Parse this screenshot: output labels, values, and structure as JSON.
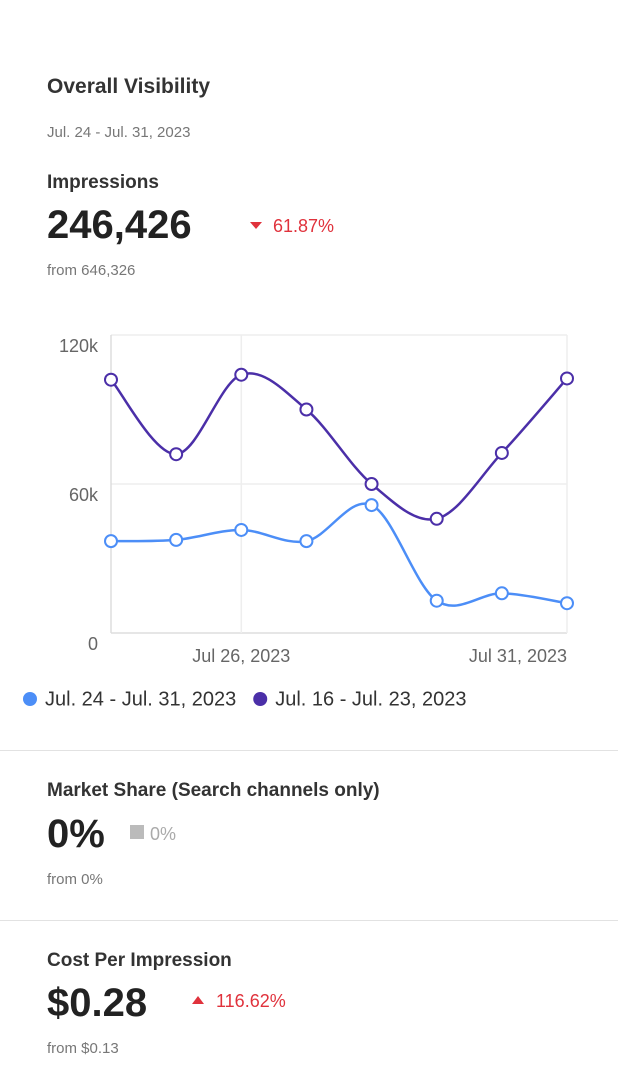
{
  "header": {
    "title": "Overall Visibility",
    "date_range": "Jul. 24 - Jul. 31, 2023"
  },
  "metrics": [
    {
      "label": "Impressions",
      "value": "246,426",
      "change": "61.87%",
      "from": "from 646,326"
    },
    {
      "label": "Market Share (Search channels only)",
      "value": "0%",
      "change": "0%",
      "from": "from 0%"
    },
    {
      "label": "Cost Per Impression",
      "value": "$0.28",
      "change": "116.62%",
      "from": "from $0.13"
    }
  ],
  "chart_data": {
    "type": "line",
    "categories": [
      null,
      null,
      "Jul 26, 2023",
      null,
      null,
      null,
      null,
      "Jul 31, 2023"
    ],
    "series": [
      {
        "name": "Jul. 24 - Jul. 31, 2023",
        "color": "#4c8ef7",
        "values": [
          37000,
          37500,
          41500,
          37000,
          51500,
          13000,
          16000,
          12000
        ]
      },
      {
        "name": "Jul. 16 - Jul. 23, 2023",
        "color": "#4b2fa8",
        "values": [
          102000,
          72000,
          104000,
          90000,
          60000,
          46000,
          72500,
          102500
        ]
      }
    ],
    "ylim": [
      0,
      120000
    ],
    "yticks": [
      0,
      {
        "value": 60000,
        "label": "60k"
      },
      {
        "value": 120000,
        "label": "120k"
      }
    ],
    "grid": true
  }
}
